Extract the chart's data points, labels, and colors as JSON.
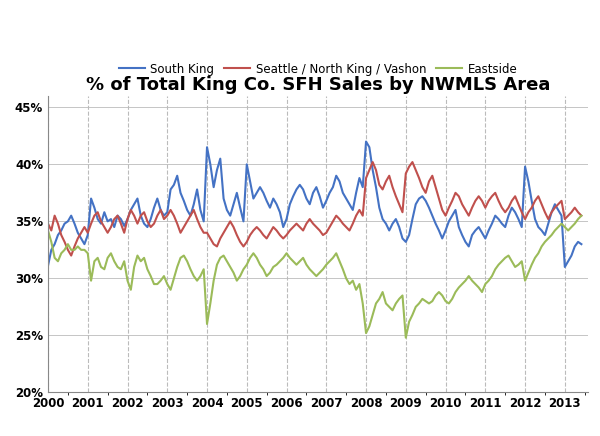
{
  "title": "% of Total King Co. SFH Sales by NWMLS Area",
  "legend_labels": [
    "South King",
    "Seattle / North King / Vashon",
    "Eastside"
  ],
  "line_colors": [
    "#4472C4",
    "#C0504D",
    "#9BBB59"
  ],
  "line_width": 1.5,
  "xlim": [
    2000.0,
    2013.583
  ],
  "ylim": [
    0.2,
    0.46
  ],
  "yticks": [
    0.2,
    0.25,
    0.3,
    0.35,
    0.4,
    0.45
  ],
  "xticks": [
    2000,
    2001,
    2002,
    2003,
    2004,
    2005,
    2006,
    2007,
    2008,
    2009,
    2010,
    2011,
    2012,
    2013
  ],
  "background_color": "#FFFFFF",
  "grid_color": "#AAAAAA",
  "south_king": [
    0.311,
    0.325,
    0.33,
    0.338,
    0.342,
    0.348,
    0.35,
    0.355,
    0.348,
    0.34,
    0.335,
    0.33,
    0.338,
    0.37,
    0.362,
    0.352,
    0.348,
    0.358,
    0.35,
    0.352,
    0.345,
    0.355,
    0.352,
    0.346,
    0.352,
    0.36,
    0.365,
    0.37,
    0.355,
    0.348,
    0.345,
    0.352,
    0.362,
    0.37,
    0.36,
    0.355,
    0.358,
    0.378,
    0.382,
    0.39,
    0.375,
    0.368,
    0.36,
    0.355,
    0.365,
    0.378,
    0.36,
    0.35,
    0.415,
    0.4,
    0.38,
    0.395,
    0.405,
    0.37,
    0.36,
    0.355,
    0.365,
    0.375,
    0.362,
    0.35,
    0.4,
    0.385,
    0.37,
    0.375,
    0.38,
    0.375,
    0.368,
    0.362,
    0.37,
    0.365,
    0.358,
    0.345,
    0.352,
    0.365,
    0.372,
    0.378,
    0.382,
    0.378,
    0.37,
    0.365,
    0.375,
    0.38,
    0.372,
    0.362,
    0.368,
    0.375,
    0.38,
    0.39,
    0.385,
    0.375,
    0.37,
    0.365,
    0.36,
    0.375,
    0.388,
    0.38,
    0.42,
    0.415,
    0.395,
    0.38,
    0.362,
    0.352,
    0.348,
    0.342,
    0.348,
    0.352,
    0.345,
    0.335,
    0.332,
    0.338,
    0.352,
    0.365,
    0.37,
    0.372,
    0.368,
    0.362,
    0.355,
    0.348,
    0.342,
    0.335,
    0.342,
    0.35,
    0.355,
    0.36,
    0.345,
    0.338,
    0.332,
    0.328,
    0.338,
    0.342,
    0.345,
    0.34,
    0.335,
    0.342,
    0.348,
    0.355,
    0.352,
    0.348,
    0.345,
    0.355,
    0.362,
    0.358,
    0.352,
    0.345,
    0.398,
    0.385,
    0.368,
    0.352,
    0.345,
    0.342,
    0.338,
    0.348,
    0.358,
    0.365,
    0.36,
    0.355,
    0.31,
    0.315,
    0.32,
    0.328,
    0.332,
    0.33
  ],
  "seattle": [
    0.348,
    0.342,
    0.355,
    0.348,
    0.338,
    0.332,
    0.325,
    0.32,
    0.328,
    0.335,
    0.34,
    0.345,
    0.34,
    0.348,
    0.355,
    0.358,
    0.35,
    0.345,
    0.34,
    0.345,
    0.352,
    0.355,
    0.348,
    0.34,
    0.352,
    0.36,
    0.355,
    0.348,
    0.355,
    0.358,
    0.35,
    0.345,
    0.348,
    0.355,
    0.36,
    0.352,
    0.355,
    0.36,
    0.355,
    0.348,
    0.34,
    0.345,
    0.35,
    0.355,
    0.36,
    0.352,
    0.345,
    0.34,
    0.34,
    0.335,
    0.33,
    0.328,
    0.335,
    0.34,
    0.345,
    0.35,
    0.345,
    0.338,
    0.332,
    0.328,
    0.332,
    0.338,
    0.342,
    0.345,
    0.342,
    0.338,
    0.335,
    0.34,
    0.345,
    0.342,
    0.338,
    0.335,
    0.338,
    0.342,
    0.345,
    0.348,
    0.345,
    0.342,
    0.348,
    0.352,
    0.348,
    0.345,
    0.342,
    0.338,
    0.34,
    0.345,
    0.35,
    0.355,
    0.352,
    0.348,
    0.345,
    0.342,
    0.348,
    0.355,
    0.36,
    0.355,
    0.388,
    0.395,
    0.402,
    0.395,
    0.382,
    0.378,
    0.385,
    0.39,
    0.38,
    0.372,
    0.365,
    0.358,
    0.392,
    0.398,
    0.402,
    0.395,
    0.388,
    0.38,
    0.375,
    0.385,
    0.39,
    0.38,
    0.37,
    0.36,
    0.355,
    0.362,
    0.368,
    0.375,
    0.372,
    0.365,
    0.36,
    0.355,
    0.362,
    0.368,
    0.372,
    0.368,
    0.362,
    0.368,
    0.372,
    0.375,
    0.368,
    0.362,
    0.358,
    0.362,
    0.368,
    0.372,
    0.365,
    0.358,
    0.352,
    0.358,
    0.362,
    0.368,
    0.372,
    0.365,
    0.358,
    0.352,
    0.358,
    0.362,
    0.365,
    0.368,
    0.352,
    0.355,
    0.358,
    0.362,
    0.358,
    0.355
  ],
  "eastside": [
    0.342,
    0.332,
    0.318,
    0.315,
    0.322,
    0.325,
    0.33,
    0.325,
    0.325,
    0.328,
    0.325,
    0.325,
    0.322,
    0.298,
    0.315,
    0.318,
    0.31,
    0.308,
    0.318,
    0.322,
    0.315,
    0.31,
    0.308,
    0.315,
    0.298,
    0.29,
    0.31,
    0.32,
    0.315,
    0.318,
    0.308,
    0.302,
    0.295,
    0.295,
    0.298,
    0.302,
    0.295,
    0.29,
    0.3,
    0.31,
    0.318,
    0.32,
    0.315,
    0.308,
    0.302,
    0.298,
    0.302,
    0.308,
    0.26,
    0.278,
    0.298,
    0.312,
    0.318,
    0.32,
    0.315,
    0.31,
    0.305,
    0.298,
    0.302,
    0.308,
    0.312,
    0.318,
    0.322,
    0.318,
    0.312,
    0.308,
    0.302,
    0.305,
    0.31,
    0.312,
    0.315,
    0.318,
    0.322,
    0.318,
    0.315,
    0.312,
    0.315,
    0.318,
    0.312,
    0.308,
    0.305,
    0.302,
    0.305,
    0.308,
    0.312,
    0.315,
    0.318,
    0.322,
    0.315,
    0.308,
    0.3,
    0.295,
    0.298,
    0.29,
    0.295,
    0.278,
    0.252,
    0.258,
    0.268,
    0.278,
    0.282,
    0.288,
    0.278,
    0.275,
    0.272,
    0.278,
    0.282,
    0.285,
    0.248,
    0.262,
    0.268,
    0.275,
    0.278,
    0.282,
    0.28,
    0.278,
    0.28,
    0.285,
    0.288,
    0.285,
    0.28,
    0.278,
    0.282,
    0.288,
    0.292,
    0.295,
    0.298,
    0.302,
    0.298,
    0.295,
    0.292,
    0.288,
    0.295,
    0.298,
    0.302,
    0.308,
    0.312,
    0.315,
    0.318,
    0.32,
    0.315,
    0.31,
    0.312,
    0.315,
    0.298,
    0.305,
    0.312,
    0.318,
    0.322,
    0.328,
    0.332,
    0.335,
    0.338,
    0.342,
    0.345,
    0.348,
    0.345,
    0.342,
    0.345,
    0.348,
    0.352,
    0.355
  ]
}
